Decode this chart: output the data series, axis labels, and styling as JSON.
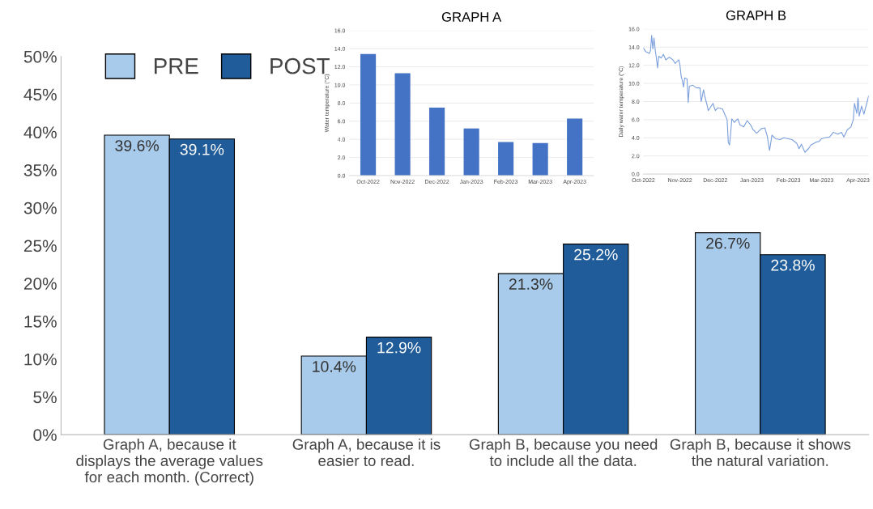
{
  "chart_data": [
    {
      "type": "bar",
      "categories": [
        "Graph A, because it\ndisplays the average values\nfor each month. (Correct)",
        "Graph A, because it is\neasier to read.",
        "Graph B, because you need\nto include all the data.",
        "Graph B, because it shows\nthe natural variation."
      ],
      "series": [
        {
          "name": "PRE",
          "color": "#a9cbeb",
          "values": [
            39.6,
            10.4,
            21.3,
            26.7
          ],
          "value_labels": [
            "39.6%",
            "10.4%",
            "21.3%",
            "26.7%"
          ]
        },
        {
          "name": "POST",
          "color": "#1f5c99",
          "values": [
            39.1,
            12.9,
            25.2,
            23.8
          ],
          "value_labels": [
            "39.1%",
            "12.9%",
            "25.2%",
            "23.8%"
          ]
        }
      ],
      "ylim": [
        0,
        50
      ],
      "yticks": [
        {
          "value": 0,
          "label": "0%"
        },
        {
          "value": 5,
          "label": "5%"
        },
        {
          "value": 10,
          "label": "10%"
        },
        {
          "value": 15,
          "label": "15%"
        },
        {
          "value": 20,
          "label": "20%"
        },
        {
          "value": 25,
          "label": "25%"
        },
        {
          "value": 30,
          "label": "30%"
        },
        {
          "value": 35,
          "label": "35%"
        },
        {
          "value": 40,
          "label": "40%"
        },
        {
          "value": 45,
          "label": "45%"
        },
        {
          "value": 50,
          "label": "50%"
        }
      ],
      "grid": false,
      "legend": "top left"
    },
    {
      "type": "bar",
      "title": "GRAPH A",
      "ylabel": "Water temperature (°C)",
      "categories": [
        "Oct-2022",
        "Nov-2022",
        "Dec-2022",
        "Jan-2023",
        "Feb-2023",
        "Mar-2023",
        "Apr-2023"
      ],
      "series": [
        {
          "color": "#4472c4",
          "values": [
            13.4,
            11.3,
            7.5,
            5.2,
            3.7,
            3.6,
            6.3
          ]
        }
      ],
      "ylim": [
        0,
        16
      ],
      "yticks": [
        {
          "value": 0,
          "label": "0.0"
        },
        {
          "value": 2,
          "label": "2.0"
        },
        {
          "value": 4,
          "label": "4.0"
        },
        {
          "value": 6,
          "label": "6.0"
        },
        {
          "value": 8,
          "label": "8.0"
        },
        {
          "value": 10,
          "label": "10.0"
        },
        {
          "value": 12,
          "label": "12.0"
        },
        {
          "value": 14,
          "label": "14.0"
        },
        {
          "value": 16,
          "label": "16.0"
        }
      ],
      "grid": "y"
    },
    {
      "type": "line",
      "title": "GRAPH B",
      "ylabel": "Daily water temperature (°C)",
      "x": [
        "2022-10-01",
        "2022-10-03",
        "2022-10-06",
        "2022-10-07",
        "2022-10-08",
        "2022-10-09",
        "2022-10-10",
        "2022-10-11",
        "2022-10-12",
        "2022-10-13",
        "2022-10-14",
        "2022-10-16",
        "2022-10-18",
        "2022-10-20",
        "2022-10-23",
        "2022-10-26",
        "2022-10-28",
        "2022-10-31",
        "2022-11-01",
        "2022-11-02",
        "2022-11-03",
        "2022-11-04",
        "2022-11-05",
        "2022-11-07",
        "2022-11-08",
        "2022-11-09",
        "2022-11-12",
        "2022-11-15",
        "2022-11-18",
        "2022-11-19",
        "2022-11-21",
        "2022-11-22",
        "2022-11-24",
        "2022-11-25",
        "2022-11-29",
        "2022-12-01",
        "2022-12-03",
        "2022-12-07",
        "2022-12-09",
        "2022-12-11",
        "2022-12-12",
        "2022-12-13",
        "2022-12-14",
        "2022-12-15",
        "2022-12-17",
        "2022-12-20",
        "2022-12-22",
        "2022-12-25",
        "2022-12-28",
        "2022-12-31",
        "2023-01-02",
        "2023-01-05",
        "2023-01-09",
        "2023-01-12",
        "2023-01-14",
        "2023-01-16",
        "2023-01-18",
        "2023-01-21",
        "2023-01-25",
        "2023-01-28",
        "2023-02-01",
        "2023-02-04",
        "2023-02-08",
        "2023-02-10",
        "2023-02-12",
        "2023-02-15",
        "2023-02-18",
        "2023-02-20",
        "2023-02-24",
        "2023-02-27",
        "2023-03-01",
        "2023-03-04",
        "2023-03-08",
        "2023-03-11",
        "2023-03-15",
        "2023-03-18",
        "2023-03-20",
        "2023-03-23",
        "2023-03-26",
        "2023-03-28",
        "2023-03-29",
        "2023-03-31",
        "2023-04-01",
        "2023-04-02",
        "2023-04-04",
        "2023-04-06",
        "2023-04-08",
        "2023-04-10"
      ],
      "series": [
        {
          "color": "#7a9fdc",
          "values": [
            13.9,
            13.5,
            13.3,
            13.6,
            15.3,
            13.8,
            15.0,
            13.7,
            12.8,
            11.7,
            13.0,
            12.8,
            13.2,
            12.6,
            12.9,
            12.6,
            12.2,
            12.6,
            12.0,
            10.8,
            10.3,
            9.6,
            10.6,
            10.5,
            7.9,
            9.7,
            9.8,
            9.5,
            9.5,
            8.0,
            9.3,
            8.6,
            7.6,
            7.0,
            7.8,
            7.0,
            7.3,
            7.2,
            6.6,
            6.0,
            3.5,
            3.2,
            4.5,
            6.1,
            5.7,
            6.1,
            5.4,
            5.2,
            5.9,
            5.4,
            4.9,
            4.5,
            5.0,
            5.1,
            4.2,
            2.6,
            4.3,
            3.9,
            3.8,
            4.0,
            3.9,
            3.8,
            3.4,
            2.8,
            3.3,
            2.4,
            2.8,
            3.2,
            3.5,
            3.6,
            3.9,
            4.0,
            4.1,
            4.6,
            4.4,
            4.6,
            4.1,
            4.9,
            5.2,
            6.0,
            7.8,
            6.7,
            8.4,
            6.4,
            7.5,
            6.6,
            7.6,
            8.6
          ]
        }
      ],
      "xlim": [
        "2022-10-01",
        "2023-04-10"
      ],
      "xticks": [
        {
          "value": "2022-10-01",
          "label": "Oct-2022"
        },
        {
          "value": "2022-11-01",
          "label": "Nov-2022"
        },
        {
          "value": "2022-12-01",
          "label": "Dec-2022"
        },
        {
          "value": "2023-01-01",
          "label": "Jan-2023"
        },
        {
          "value": "2023-02-01",
          "label": "Feb-2023"
        },
        {
          "value": "2023-03-01",
          "label": "Mar-2023"
        },
        {
          "value": "2023-04-01",
          "label": "Apr-2023"
        }
      ],
      "ylim": [
        0,
        16
      ],
      "yticks": [
        {
          "value": 0,
          "label": "0.0"
        },
        {
          "value": 2,
          "label": "2.0"
        },
        {
          "value": 4,
          "label": "4.0"
        },
        {
          "value": 6,
          "label": "6.0"
        },
        {
          "value": 8,
          "label": "8.0"
        },
        {
          "value": 10,
          "label": "10.0"
        },
        {
          "value": 12,
          "label": "12.0"
        },
        {
          "value": 14,
          "label": "14.0"
        },
        {
          "value": 16,
          "label": "16.0"
        }
      ],
      "grid": "y"
    }
  ]
}
